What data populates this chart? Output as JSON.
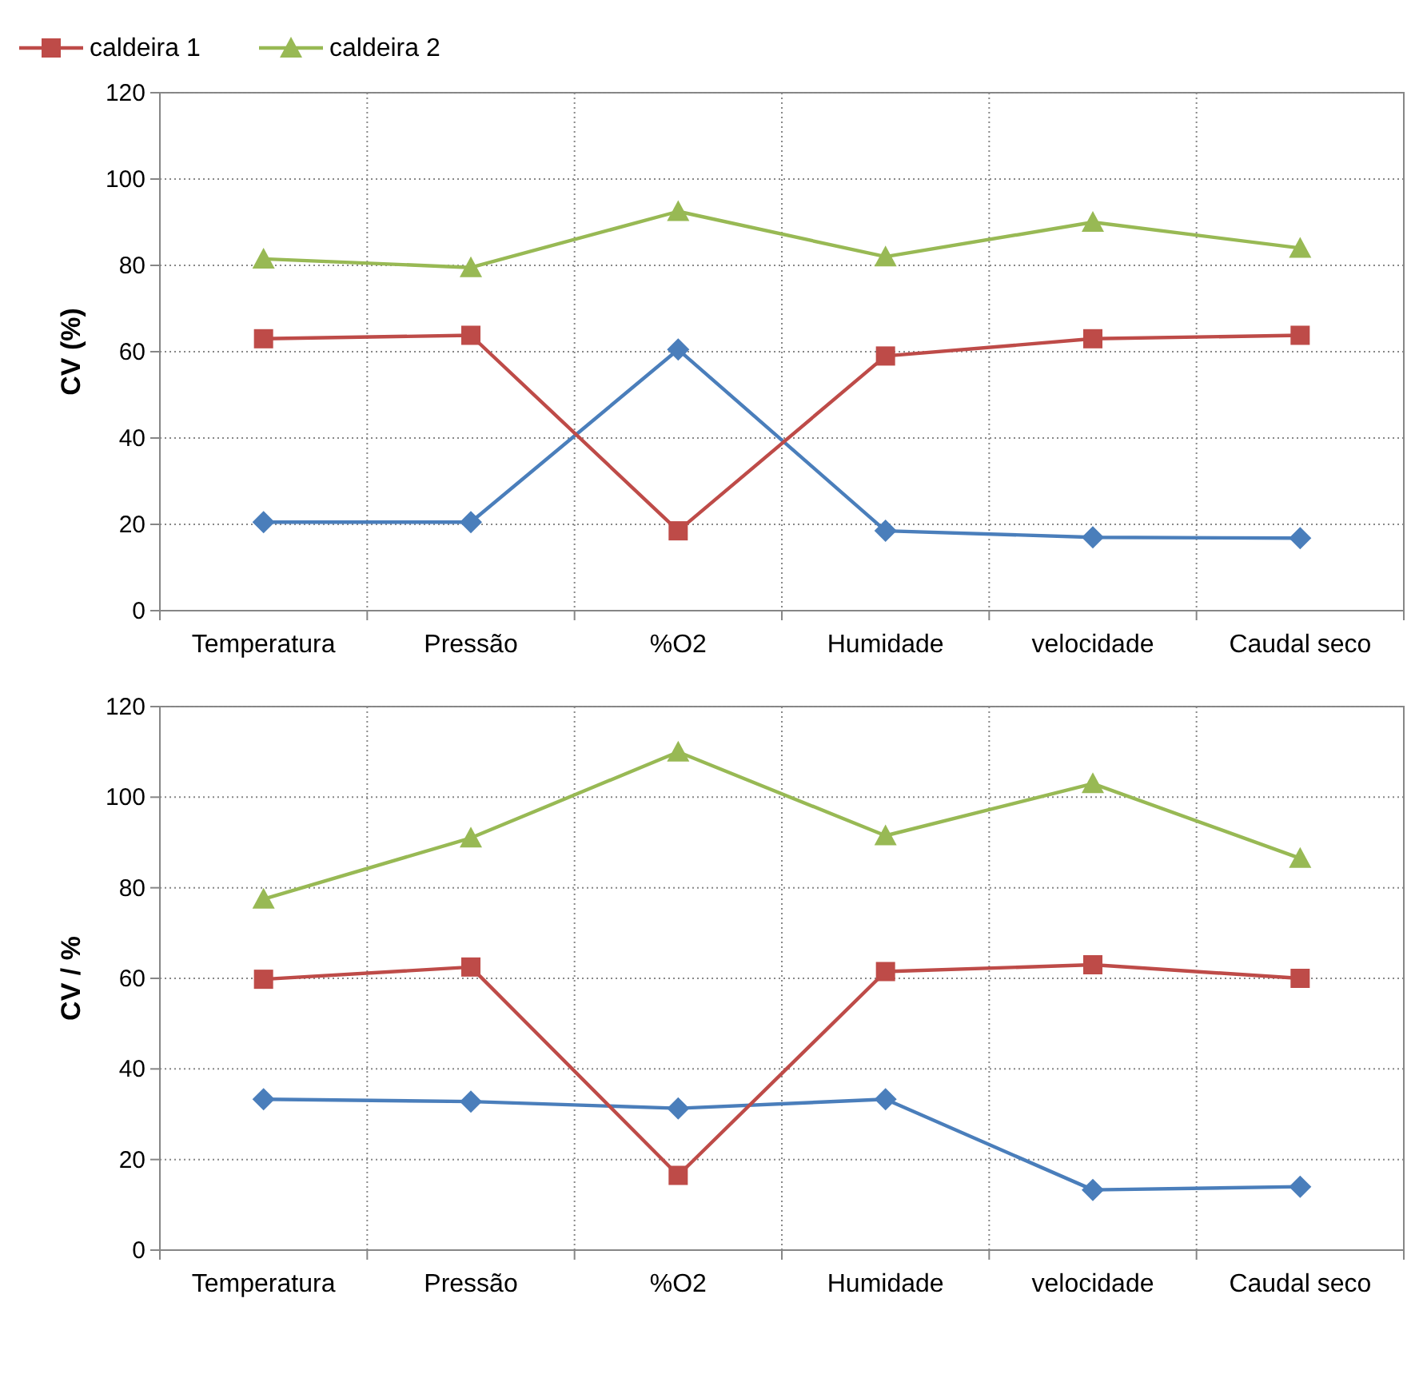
{
  "chart_data": [
    {
      "type": "line",
      "ylabel": "CV (%)",
      "categories": [
        "Temperatura",
        "Pressão",
        "%O2",
        "Humidade",
        "velocidade",
        "Caudal seco"
      ],
      "ylim": [
        0,
        120
      ],
      "yticks": [
        0,
        20,
        40,
        60,
        80,
        100,
        120
      ],
      "grid": true,
      "legend": "top left",
      "line_style": "solid",
      "series": [
        {
          "color": "#4a7ebb",
          "marker": "diamond",
          "values": [
            20.5,
            20.5,
            60.5,
            18.5,
            17,
            16.8
          ]
        },
        {
          "name": "caldeira 1",
          "color": "#be4b48",
          "marker": "square",
          "values": [
            63,
            63.8,
            18.5,
            59,
            63,
            63.8
          ]
        },
        {
          "name": "caldeira 2",
          "color": "#98b954",
          "marker": "triangle",
          "values": [
            81.5,
            79.5,
            92.5,
            82,
            90,
            84
          ]
        }
      ]
    },
    {
      "type": "line",
      "ylabel": "CV / %",
      "categories": [
        "Temperatura",
        "Pressão",
        "%O2",
        "Humidade",
        "velocidade",
        "Caudal seco"
      ],
      "ylim": [
        0,
        120
      ],
      "yticks": [
        0,
        20,
        40,
        60,
        80,
        100,
        120
      ],
      "grid": true,
      "line_style": "solid",
      "series": [
        {
          "color": "#4a7ebb",
          "marker": "diamond",
          "values": [
            33.3,
            32.8,
            31.3,
            33.3,
            13.3,
            14
          ]
        },
        {
          "color": "#be4b48",
          "marker": "square",
          "values": [
            59.8,
            62.5,
            16.5,
            61.5,
            63,
            60
          ]
        },
        {
          "color": "#98b954",
          "marker": "triangle",
          "values": [
            77.5,
            91,
            110,
            91.5,
            103,
            86.5
          ]
        }
      ]
    }
  ]
}
